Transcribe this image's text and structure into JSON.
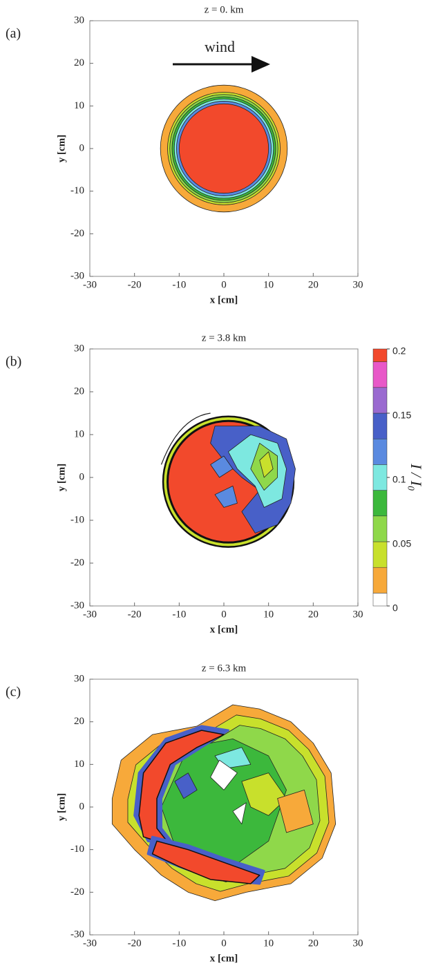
{
  "chart_data": [
    {
      "type": "contour",
      "label": "(a)",
      "title": "z = 0. km",
      "annotation": "wind",
      "xlabel": "x [cm]",
      "ylabel": "y [cm]",
      "xlim": [
        -30,
        30
      ],
      "ylim": [
        -30,
        30
      ],
      "xticks": [
        -30,
        -20,
        -10,
        0,
        10,
        20,
        30
      ],
      "yticks": [
        -30,
        -20,
        -10,
        0,
        10,
        20,
        30
      ]
    },
    {
      "type": "contour",
      "label": "(b)",
      "title": "z = 3.8 km",
      "xlabel": "x [cm]",
      "ylabel": "y [cm]",
      "xlim": [
        -30,
        30
      ],
      "ylim": [
        -30,
        30
      ],
      "xticks": [
        -30,
        -20,
        -10,
        0,
        10,
        20,
        30
      ],
      "yticks": [
        -30,
        -20,
        -10,
        0,
        10,
        20,
        30
      ],
      "colorbar": {
        "label": "I / I₀",
        "lim": [
          0,
          0.2
        ],
        "ticks": [
          0,
          0.05,
          0.1,
          0.15,
          0.2
        ],
        "levels": [
          0,
          0.01,
          0.03,
          0.05,
          0.07,
          0.09,
          0.11,
          0.13,
          0.15,
          0.17,
          0.19,
          0.2
        ],
        "colors": [
          "#ffffff",
          "#f7a93a",
          "#c8e02c",
          "#8fd84a",
          "#3cb83c",
          "#7de8e0",
          "#5a8ae0",
          "#4860c8",
          "#9a6ad0",
          "#e858c8",
          "#f2492c"
        ]
      }
    },
    {
      "type": "contour",
      "label": "(c)",
      "title": "z = 6.3 km",
      "xlabel": "x [cm]",
      "ylabel": "y [cm]",
      "xlim": [
        -30,
        30
      ],
      "ylim": [
        -30,
        30
      ],
      "xticks": [
        -30,
        -20,
        -10,
        0,
        10,
        20,
        30
      ],
      "yticks": [
        -30,
        -20,
        -10,
        0,
        10,
        20,
        30
      ]
    }
  ]
}
